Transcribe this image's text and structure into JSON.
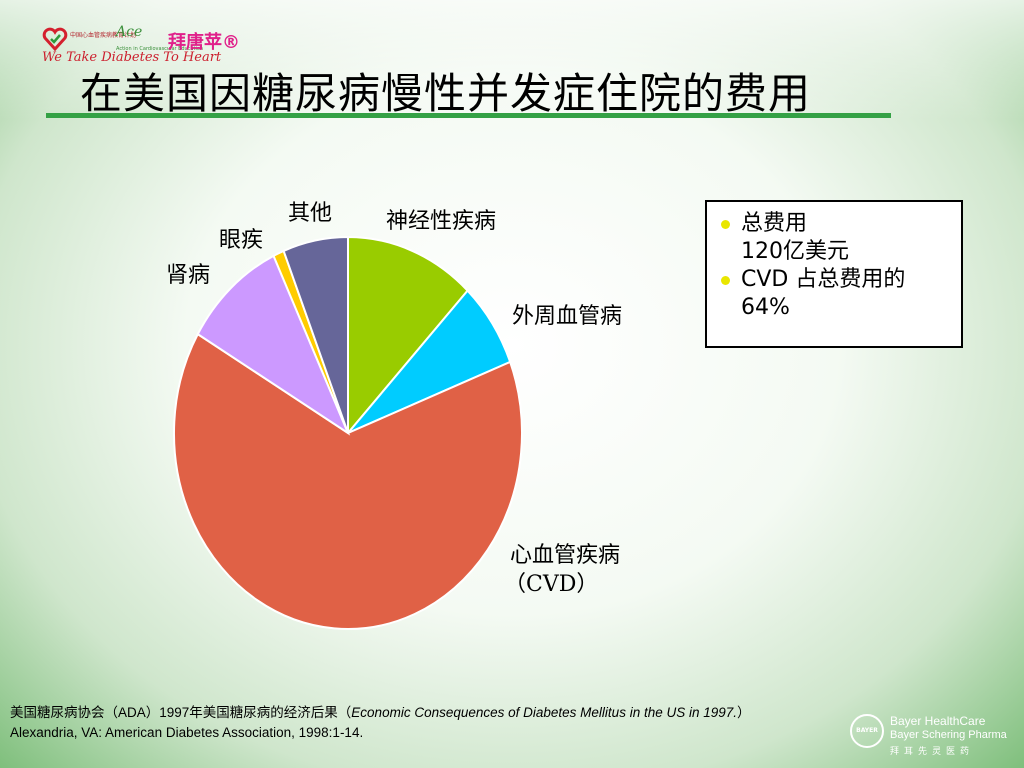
{
  "header": {
    "logo_small_text": "中国心血管疾病教育计划",
    "logo_ace": "Ace",
    "logo_ace_tag": "Action in Cardiovascular Education",
    "logo_brand": "拜唐苹®",
    "tagline": "We Take Diabetes To Heart",
    "title": "在美国因糖尿病慢性并发症住院的费用"
  },
  "chart_data": {
    "type": "pie",
    "title": "",
    "start_angle": 0,
    "slices": [
      {
        "label": "神经性疾病",
        "value": 12,
        "color": "#99cc00"
      },
      {
        "label": "外周血管病",
        "value": 7,
        "color": "#00ccff"
      },
      {
        "label": "心血管疾病",
        "label2": "（CVD）",
        "value": 64,
        "color": "#e06146"
      },
      {
        "label": "肾病",
        "value": 9.5,
        "color": "#cc99ff"
      },
      {
        "label": "眼疾",
        "value": 1,
        "color": "#ffcc00"
      },
      {
        "label": "其他",
        "value": 6,
        "color": "#666699"
      }
    ]
  },
  "info_box": {
    "items": [
      {
        "line1": "总费用",
        "line2": "120亿美元"
      },
      {
        "line1": "CVD 占总费用的",
        "line2": "64%"
      }
    ]
  },
  "citation": {
    "part1": "美国糖尿病协会（ADA）1997年美国糖尿病的经济后果（",
    "italic": "Economic Consequences of Diabetes Mellitus in the US in 1997.",
    "part2": "）",
    "line2": "Alexandria, VA: American Diabetes Association, 1998:1-14."
  },
  "bayer": {
    "line1": "Bayer HealthCare",
    "line2": "Bayer Schering Pharma",
    "line3": "拜耳先灵医药",
    "cross": "BAYER"
  },
  "colors": {
    "title_rule": "#34a145",
    "bullet": "#e9e600"
  }
}
